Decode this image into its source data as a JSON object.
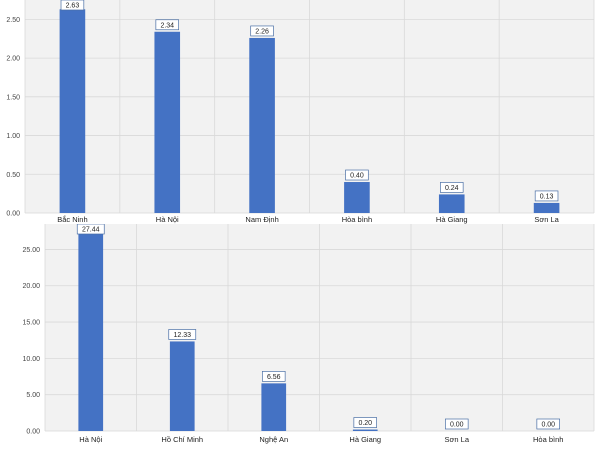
{
  "chart_data": [
    {
      "type": "bar",
      "categories": [
        "Bắc Ninh",
        "Hà Nội",
        "Nam Định",
        "Hòa bình",
        "Hà Giang",
        "Sơn La"
      ],
      "values": [
        2.63,
        2.34,
        2.26,
        0.4,
        0.24,
        0.13
      ],
      "data_labels": [
        "2.63",
        "2.34",
        "2.26",
        "0.40",
        "0.24",
        "0.13"
      ],
      "yticks": [
        "0.00",
        "0.50",
        "1.00",
        "1.50",
        "2.00",
        "2.50"
      ],
      "ylim": [
        0,
        2.75
      ],
      "title": "",
      "xlabel": "",
      "ylabel": "",
      "grid": true,
      "colors": {
        "bar": "#4472c4",
        "plot_bg": "#f2f2f2",
        "grid": "#d9d9d9"
      }
    },
    {
      "type": "bar",
      "categories": [
        "Hà Nội",
        "Hồ Chí Minh",
        "Nghệ An",
        "Hà Giang",
        "Sơn La",
        "Hòa bình"
      ],
      "values": [
        27.44,
        12.33,
        6.56,
        0.2,
        0.0,
        0.0
      ],
      "data_labels": [
        "27.44",
        "12.33",
        "6.56",
        "0.20",
        "0.00",
        "0.00"
      ],
      "yticks": [
        "0.00",
        "5.00",
        "10.00",
        "15.00",
        "20.00",
        "25.00"
      ],
      "ylim": [
        0,
        28.5
      ],
      "title": "",
      "xlabel": "",
      "ylabel": "",
      "grid": true,
      "colors": {
        "bar": "#4472c4",
        "plot_bg": "#f2f2f2",
        "grid": "#d9d9d9"
      }
    }
  ]
}
